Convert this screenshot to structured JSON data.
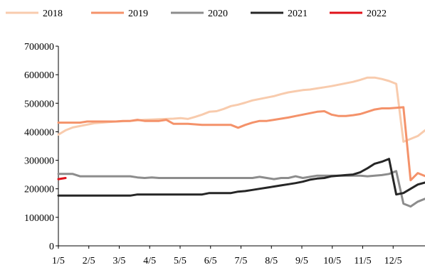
{
  "chart_data": {
    "type": "line",
    "title": "",
    "xlabel": "",
    "ylabel": "",
    "ylim": [
      0,
      700000
    ],
    "yticks": [
      "0",
      "100000",
      "200000",
      "300000",
      "400000",
      "500000",
      "600000",
      "700000"
    ],
    "xticks": [
      "1/5",
      "2/5",
      "3/5",
      "4/5",
      "5/5",
      "6/5",
      "7/5",
      "8/5",
      "9/5",
      "10/5",
      "11/5",
      "12/5"
    ],
    "x_index_range": [
      0,
      51
    ],
    "grid": false,
    "legend_position": "top",
    "series": [
      {
        "name": "2018",
        "color": "#f8cbad",
        "values": [
          390000,
          405000,
          415000,
          420000,
          425000,
          430000,
          432000,
          434000,
          436000,
          437000,
          438000,
          440000,
          442000,
          443000,
          444000,
          445000,
          446000,
          448000,
          445000,
          452000,
          460000,
          470000,
          472000,
          480000,
          490000,
          495000,
          502000,
          510000,
          515000,
          520000,
          525000,
          532000,
          538000,
          542000,
          546000,
          548000,
          552000,
          556000,
          560000,
          565000,
          570000,
          575000,
          582000,
          590000,
          590000,
          585000,
          578000,
          568000,
          365000,
          375000,
          385000,
          405000,
          420000
        ]
      },
      {
        "name": "2019",
        "color": "#f4926a",
        "values": [
          432000,
          432000,
          432000,
          432000,
          436000,
          436000,
          436000,
          436000,
          436000,
          438000,
          438000,
          442000,
          438000,
          438000,
          438000,
          442000,
          428000,
          428000,
          428000,
          426000,
          424000,
          424000,
          424000,
          424000,
          424000,
          414000,
          424000,
          432000,
          438000,
          438000,
          442000,
          446000,
          450000,
          455000,
          460000,
          465000,
          470000,
          472000,
          460000,
          455000,
          455000,
          458000,
          462000,
          470000,
          478000,
          482000,
          482000,
          484000,
          486000,
          230000,
          255000,
          245000,
          248000
        ]
      },
      {
        "name": "2020",
        "color": "#8c8c8c",
        "values": [
          252000,
          252000,
          252000,
          244000,
          244000,
          244000,
          244000,
          244000,
          244000,
          244000,
          244000,
          240000,
          238000,
          240000,
          238000,
          238000,
          238000,
          238000,
          238000,
          238000,
          238000,
          238000,
          238000,
          238000,
          238000,
          238000,
          238000,
          238000,
          242000,
          238000,
          234000,
          238000,
          238000,
          244000,
          238000,
          242000,
          246000,
          246000,
          246000,
          246000,
          246000,
          246000,
          246000,
          244000,
          246000,
          248000,
          252000,
          262000,
          148000,
          138000,
          155000,
          165000,
          165000
        ]
      },
      {
        "name": "2021",
        "color": "#262626",
        "values": [
          176000,
          176000,
          176000,
          176000,
          176000,
          176000,
          176000,
          176000,
          176000,
          176000,
          176000,
          180000,
          180000,
          180000,
          180000,
          180000,
          180000,
          180000,
          180000,
          180000,
          180000,
          185000,
          185000,
          185000,
          185000,
          190000,
          192000,
          196000,
          200000,
          204000,
          208000,
          212000,
          216000,
          220000,
          225000,
          232000,
          236000,
          238000,
          244000,
          246000,
          248000,
          250000,
          258000,
          272000,
          288000,
          295000,
          305000,
          180000,
          185000,
          200000,
          215000,
          222000,
          225000
        ]
      },
      {
        "name": "2022",
        "color": "#e0121a",
        "values": [
          234000,
          238000
        ]
      }
    ]
  }
}
